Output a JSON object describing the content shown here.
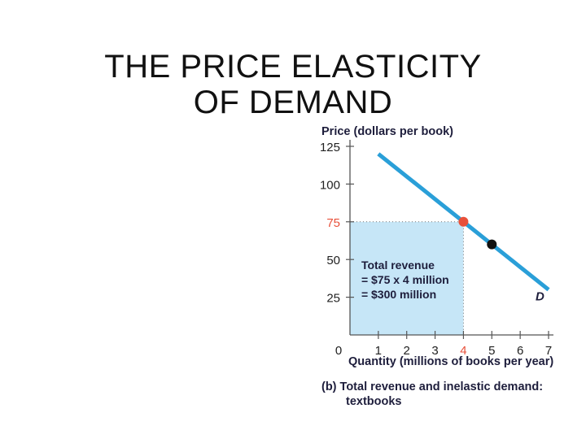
{
  "slide": {
    "title_line1": "THE PRICE ELASTICITY",
    "title_line2": "OF DEMAND"
  },
  "chart_data": {
    "type": "line",
    "ylabel": "Price (dollars per book)",
    "xlabel": "Quantity (millions of books per year)",
    "x_ticks": [
      "1",
      "2",
      "3",
      "4",
      "5",
      "6",
      "7"
    ],
    "y_ticks": [
      "25",
      "50",
      "75",
      "100",
      "125"
    ],
    "origin_label": "0",
    "xlim": [
      0,
      7
    ],
    "ylim": [
      0,
      125
    ],
    "series": [
      {
        "name": "D",
        "points": [
          [
            1,
            120
          ],
          [
            7,
            30
          ]
        ],
        "color": "#2a9fd8"
      }
    ],
    "highlight_point": {
      "x": 4,
      "y": 75,
      "color": "#e8503a"
    },
    "other_point": {
      "x": 5,
      "y": 60,
      "color": "#111111"
    },
    "highlight_tick_color": "#e8503a",
    "revenue_area": {
      "x": [
        0,
        4
      ],
      "y": [
        0,
        75
      ],
      "fill": "#c6e6f7",
      "label_lines": [
        "Total revenue",
        "= $75 x 4 million",
        "= $300 million"
      ]
    },
    "caption_lines": [
      "(b)  Total revenue and inelastic demand:",
      "textbooks"
    ]
  }
}
